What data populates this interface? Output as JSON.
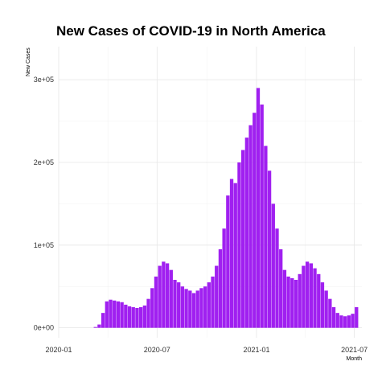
{
  "chart_data": {
    "type": "bar",
    "title": "New Cases of COVID-19 in North America",
    "xlabel": "Month",
    "ylabel": "New Cases",
    "x_start": "2020-01-01",
    "x_end": "2021-07-15",
    "ylim": [
      -12000,
      340000
    ],
    "yticks": [
      0,
      100000,
      200000,
      300000
    ],
    "ytick_labels": [
      "0e+00",
      "1e+05",
      "2e+05",
      "3e+05"
    ],
    "xticks": [
      "2020-01-01",
      "2020-07-01",
      "2021-01-01",
      "2021-07-01"
    ],
    "xtick_labels": [
      "2020-01",
      "2020-07",
      "2021-01",
      "2021-07"
    ],
    "grid": true,
    "bar_color": "#a020f0",
    "series": [
      {
        "frequency": "weekly",
        "x": [
          "2020-03-09",
          "2020-03-16",
          "2020-03-23",
          "2020-03-30",
          "2020-04-06",
          "2020-04-13",
          "2020-04-20",
          "2020-04-27",
          "2020-05-04",
          "2020-05-11",
          "2020-05-18",
          "2020-05-25",
          "2020-06-01",
          "2020-06-08",
          "2020-06-15",
          "2020-06-22",
          "2020-06-29",
          "2020-07-06",
          "2020-07-13",
          "2020-07-20",
          "2020-07-27",
          "2020-08-03",
          "2020-08-10",
          "2020-08-17",
          "2020-08-24",
          "2020-08-31",
          "2020-09-07",
          "2020-09-14",
          "2020-09-21",
          "2020-09-28",
          "2020-10-05",
          "2020-10-12",
          "2020-10-19",
          "2020-10-26",
          "2020-11-02",
          "2020-11-09",
          "2020-11-16",
          "2020-11-23",
          "2020-11-30",
          "2020-12-07",
          "2020-12-14",
          "2020-12-21",
          "2020-12-28",
          "2021-01-04",
          "2021-01-11",
          "2021-01-18",
          "2021-01-25",
          "2021-02-01",
          "2021-02-08",
          "2021-02-15",
          "2021-02-22",
          "2021-03-01",
          "2021-03-08",
          "2021-03-15",
          "2021-03-22",
          "2021-03-29",
          "2021-04-05",
          "2021-04-12",
          "2021-04-19",
          "2021-04-26",
          "2021-05-03",
          "2021-05-10",
          "2021-05-17",
          "2021-05-24",
          "2021-05-31",
          "2021-06-07",
          "2021-06-14",
          "2021-06-21",
          "2021-06-28",
          "2021-07-05"
        ],
        "values": [
          1000,
          4000,
          18000,
          32000,
          34000,
          33000,
          32000,
          31000,
          28000,
          26000,
          25000,
          24000,
          25000,
          27000,
          35000,
          48000,
          62000,
          75000,
          80000,
          78000,
          70000,
          58000,
          55000,
          50000,
          47000,
          45000,
          42000,
          45000,
          48000,
          50000,
          55000,
          62000,
          75000,
          95000,
          120000,
          160000,
          180000,
          175000,
          200000,
          215000,
          230000,
          245000,
          260000,
          290000,
          270000,
          220000,
          190000,
          150000,
          120000,
          95000,
          70000,
          62000,
          60000,
          58000,
          65000,
          75000,
          80000,
          78000,
          72000,
          65000,
          55000,
          45000,
          35000,
          25000,
          18000,
          15000,
          14000,
          15000,
          17000,
          25000
        ]
      }
    ]
  }
}
